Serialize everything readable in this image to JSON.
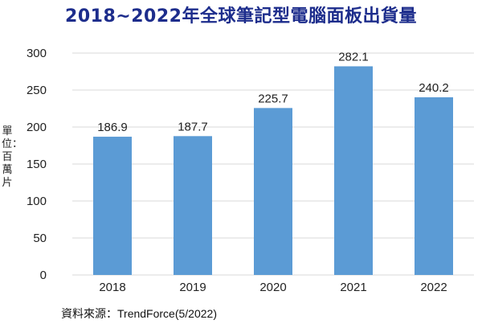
{
  "chart_data": {
    "type": "bar",
    "title": "2018~2022年全球筆記型電腦面板出貨量",
    "ylabel": "單位：百萬片",
    "source": "資料來源：TrendForce(5/2022)",
    "categories": [
      "2018",
      "2019",
      "2020",
      "2021",
      "2022"
    ],
    "values": [
      186.9,
      187.7,
      225.7,
      282.1,
      240.2
    ],
    "value_labels": [
      "186.9",
      "187.7",
      "225.7",
      "282.1",
      "240.2"
    ],
    "yticks": [
      "0",
      "50",
      "100",
      "150",
      "200",
      "250",
      "300"
    ],
    "ylim": [
      0,
      300
    ],
    "grid": true,
    "bar_color": "#5b9bd5",
    "grid_color": "#d9d9d9"
  }
}
